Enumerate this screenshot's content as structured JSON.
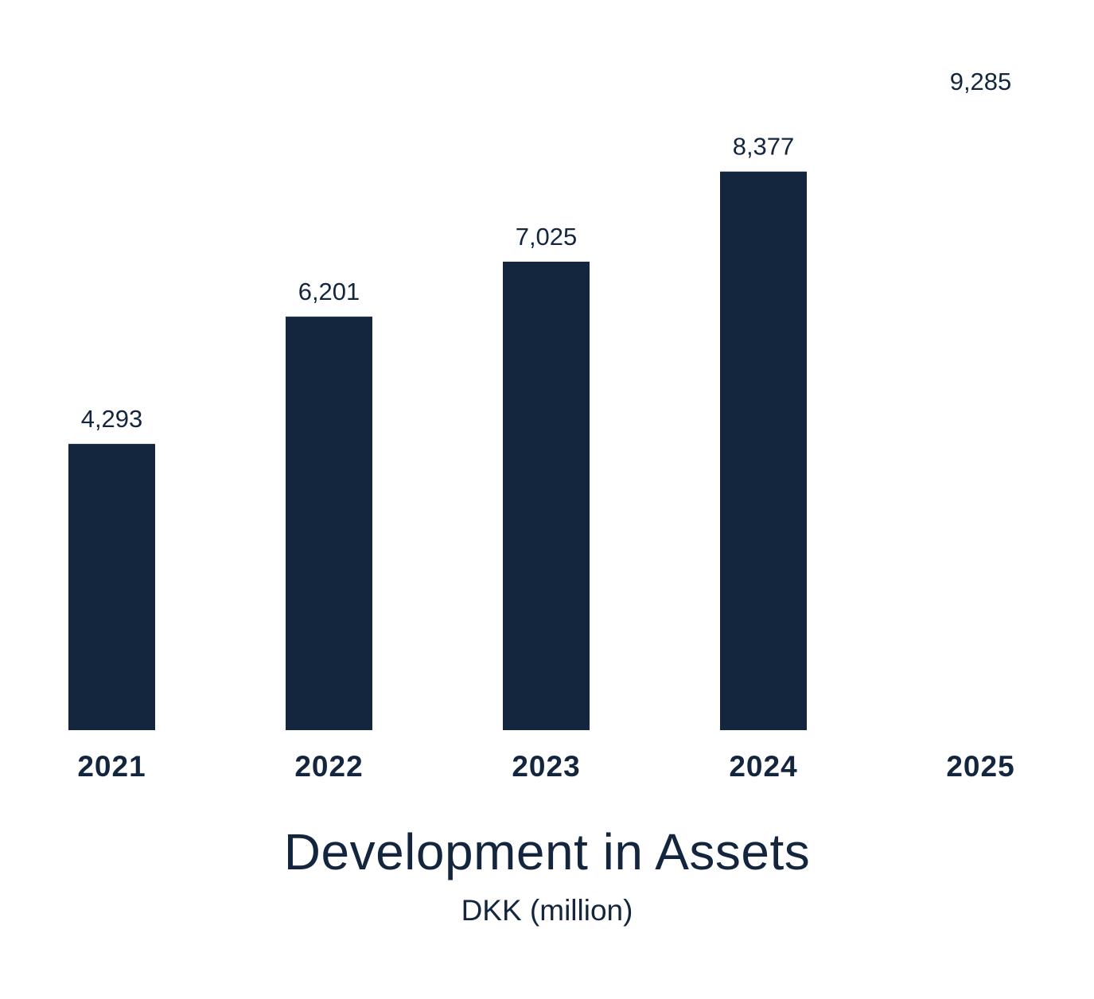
{
  "colors": {
    "bar": "#14263e",
    "text": "#14263e",
    "background": "#ffffff"
  },
  "chart_data": {
    "type": "bar",
    "title": "Development in Assets",
    "subtitle": "DKK (million)",
    "xlabel": "",
    "ylabel": "",
    "categories": [
      "2021",
      "2022",
      "2023",
      "2024",
      "2025"
    ],
    "values": [
      4293,
      6201,
      7025,
      8377,
      9285
    ],
    "value_labels": [
      "4,293",
      "6,201",
      "7,025",
      "8,377",
      "9,285"
    ],
    "bar_visible": [
      true,
      true,
      true,
      true,
      false
    ],
    "ylim": [
      0,
      10000
    ],
    "grid": false,
    "legend": "none"
  }
}
